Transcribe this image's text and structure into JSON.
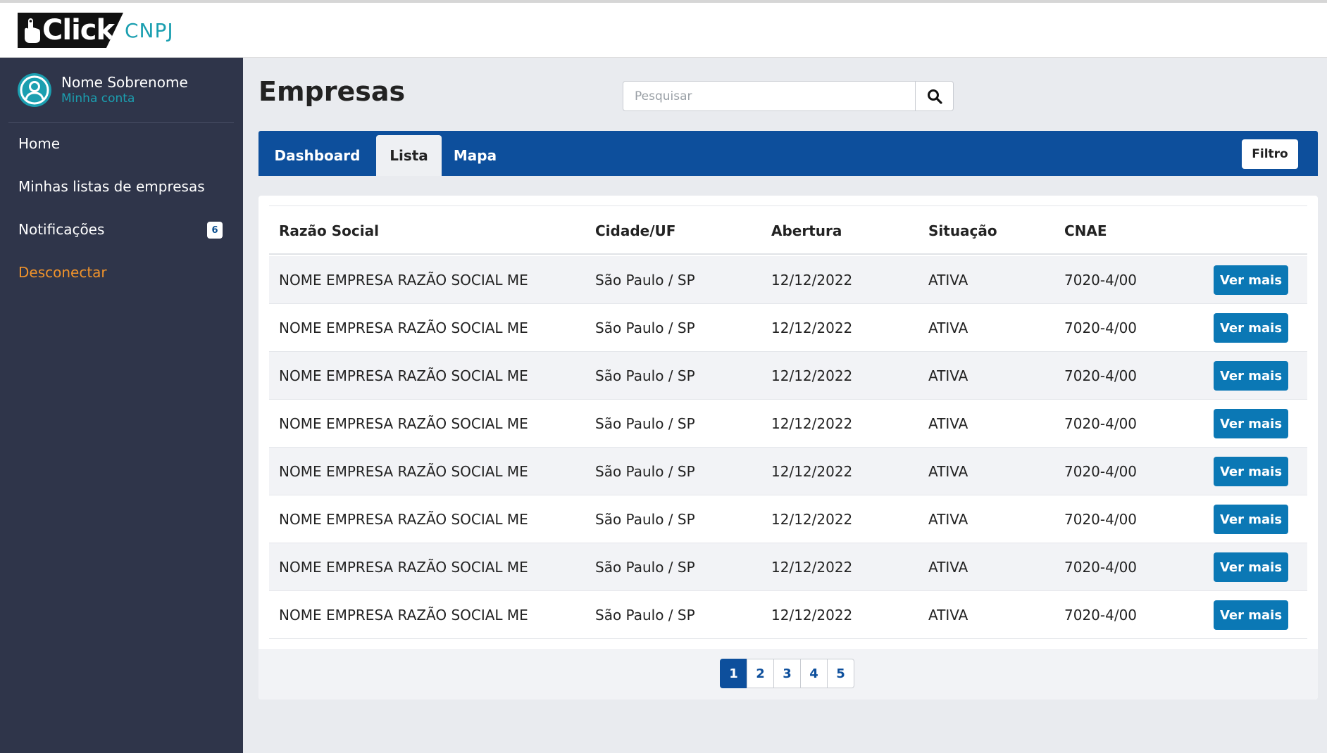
{
  "brand": {
    "click": "Click",
    "cnpj": "CNPJ"
  },
  "user": {
    "name": "Nome Sobrenome",
    "account_link": "Minha conta"
  },
  "sidebar": {
    "items": [
      {
        "label": "Home"
      },
      {
        "label": "Minhas listas de empresas"
      },
      {
        "label": "Notificações",
        "badge": "6"
      },
      {
        "label": "Desconectar"
      }
    ]
  },
  "page": {
    "title": "Empresas"
  },
  "search": {
    "placeholder": "Pesquisar",
    "value": ""
  },
  "tabs": [
    {
      "label": "Dashboard",
      "active": false
    },
    {
      "label": "Lista",
      "active": true
    },
    {
      "label": "Mapa",
      "active": false
    }
  ],
  "filter_label": "Filtro",
  "table": {
    "headers": [
      "Razão Social",
      "Cidade/UF",
      "Abertura",
      "Situação",
      "CNAE"
    ],
    "button_label": "Ver mais",
    "rows": [
      [
        "NOME EMPRESA RAZÃO SOCIAL ME",
        "São Paulo / SP",
        "12/12/2022",
        "ATIVA",
        "7020-4/00"
      ],
      [
        "NOME EMPRESA RAZÃO SOCIAL ME",
        "São Paulo / SP",
        "12/12/2022",
        "ATIVA",
        "7020-4/00"
      ],
      [
        "NOME EMPRESA RAZÃO SOCIAL ME",
        "São Paulo / SP",
        "12/12/2022",
        "ATIVA",
        "7020-4/00"
      ],
      [
        "NOME EMPRESA RAZÃO SOCIAL ME",
        "São Paulo / SP",
        "12/12/2022",
        "ATIVA",
        "7020-4/00"
      ],
      [
        "NOME EMPRESA RAZÃO SOCIAL ME",
        "São Paulo / SP",
        "12/12/2022",
        "ATIVA",
        "7020-4/00"
      ],
      [
        "NOME EMPRESA RAZÃO SOCIAL ME",
        "São Paulo / SP",
        "12/12/2022",
        "ATIVA",
        "7020-4/00"
      ],
      [
        "NOME EMPRESA RAZÃO SOCIAL ME",
        "São Paulo / SP",
        "12/12/2022",
        "ATIVA",
        "7020-4/00"
      ],
      [
        "NOME EMPRESA RAZÃO SOCIAL ME",
        "São Paulo / SP",
        "12/12/2022",
        "ATIVA",
        "7020-4/00"
      ]
    ]
  },
  "pagination": {
    "pages": [
      "1",
      "2",
      "3",
      "4",
      "5"
    ],
    "current": "1"
  },
  "colors": {
    "primary": "#0d4f9c",
    "accent": "#1b9fb0",
    "sidebar": "#2f354a",
    "logout": "#f0932b",
    "button": "#0b78b5"
  },
  "icons": {
    "search": "search-icon",
    "avatar": "user-circle-icon",
    "logo": "hand-pointer-icon"
  }
}
